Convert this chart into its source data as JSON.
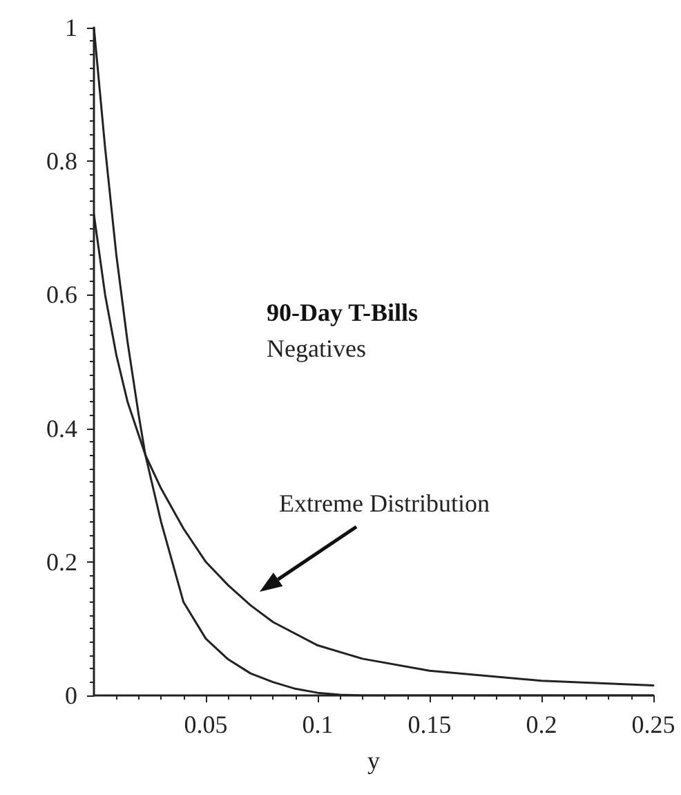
{
  "chart_data": {
    "type": "line",
    "title": "90-Day T-Bills",
    "subtitle": "Negatives",
    "xlabel": "y",
    "annotations": [
      "Extreme Distribution"
    ],
    "series": [
      {
        "color": "#222222",
        "x": [
          0,
          0.005,
          0.01,
          0.015,
          0.02,
          0.023,
          0.03,
          0.04,
          0.05,
          0.06,
          0.07,
          0.08,
          0.09,
          0.1,
          0.11,
          0.12,
          0.25
        ],
        "values": [
          1,
          0.82,
          0.66,
          0.53,
          0.42,
          0.36,
          0.26,
          0.14,
          0.085,
          0.054,
          0.033,
          0.02,
          0.01,
          0.004,
          0.001,
          0,
          0
        ]
      },
      {
        "color": "#222222",
        "x": [
          0,
          0.005,
          0.01,
          0.015,
          0.02,
          0.023,
          0.03,
          0.04,
          0.05,
          0.06,
          0.07,
          0.08,
          0.1,
          0.12,
          0.15,
          0.2,
          0.25
        ],
        "values": [
          0.72,
          0.6,
          0.51,
          0.44,
          0.39,
          0.36,
          0.31,
          0.25,
          0.2,
          0.165,
          0.135,
          0.11,
          0.075,
          0.055,
          0.037,
          0.022,
          0.015
        ]
      }
    ],
    "xlim": [
      0,
      0.25
    ],
    "xticks": [
      0.05,
      0.1,
      0.15,
      0.2,
      0.25
    ],
    "ylim": [
      0,
      1
    ],
    "yticks": [
      0,
      0.2,
      0.4,
      0.6,
      0.8,
      1
    ],
    "grid": false,
    "marker": "none",
    "line_style": "solid"
  }
}
